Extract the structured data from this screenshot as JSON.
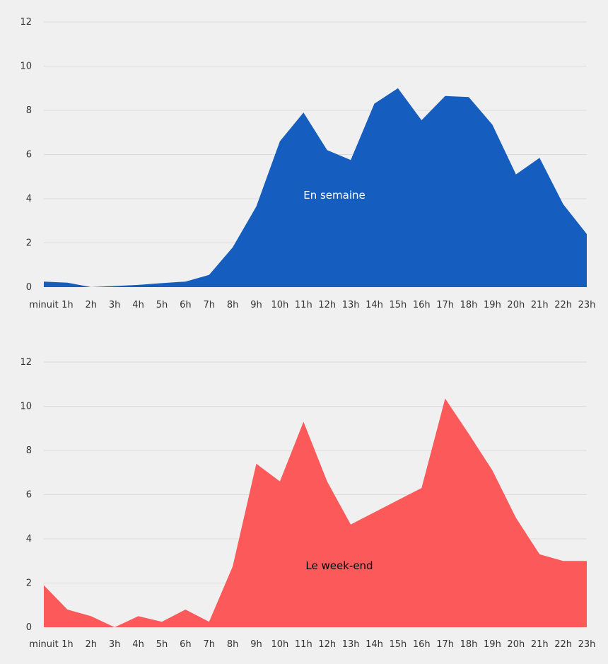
{
  "colors": {
    "background": "#f0f0f0",
    "weekday": "#155ebf",
    "weekend": "#fc5a5a"
  },
  "chart_data": [
    {
      "type": "area",
      "name": "weekday",
      "annotation": "En semaine",
      "categories": [
        "minuit",
        "1h",
        "2h",
        "3h",
        "4h",
        "5h",
        "6h",
        "7h",
        "8h",
        "9h",
        "10h",
        "11h",
        "12h",
        "13h",
        "14h",
        "15h",
        "16h",
        "17h",
        "18h",
        "19h",
        "20h",
        "21h",
        "22h",
        "23h"
      ],
      "values": [
        0.25,
        0.2,
        0.0,
        0.05,
        0.1,
        0.18,
        0.25,
        0.55,
        1.8,
        3.65,
        6.6,
        7.9,
        6.2,
        5.75,
        8.3,
        9.0,
        7.55,
        8.65,
        8.6,
        7.35,
        5.1,
        5.85,
        3.75,
        2.4
      ],
      "yticks": [
        "0",
        "2",
        "4",
        "6",
        "8",
        "10",
        "12"
      ],
      "ylim": [
        0,
        12
      ],
      "grid": true
    },
    {
      "type": "area",
      "name": "weekend",
      "annotation": "Le week-end",
      "categories": [
        "minuit",
        "1h",
        "2h",
        "3h",
        "4h",
        "5h",
        "6h",
        "7h",
        "8h",
        "9h",
        "10h",
        "11h",
        "12h",
        "13h",
        "14h",
        "15h",
        "16h",
        "17h",
        "18h",
        "19h",
        "20h",
        "21h",
        "22h",
        "23h"
      ],
      "values": [
        1.9,
        0.8,
        0.5,
        0.0,
        0.5,
        0.25,
        0.8,
        0.25,
        2.75,
        7.4,
        6.6,
        9.3,
        6.6,
        4.65,
        5.2,
        5.75,
        6.3,
        10.35,
        8.75,
        7.1,
        4.95,
        3.3,
        3.0,
        3.0
      ],
      "yticks": [
        "0",
        "2",
        "4",
        "6",
        "8",
        "10",
        "12"
      ],
      "ylim": [
        0,
        12
      ],
      "grid": true
    }
  ]
}
